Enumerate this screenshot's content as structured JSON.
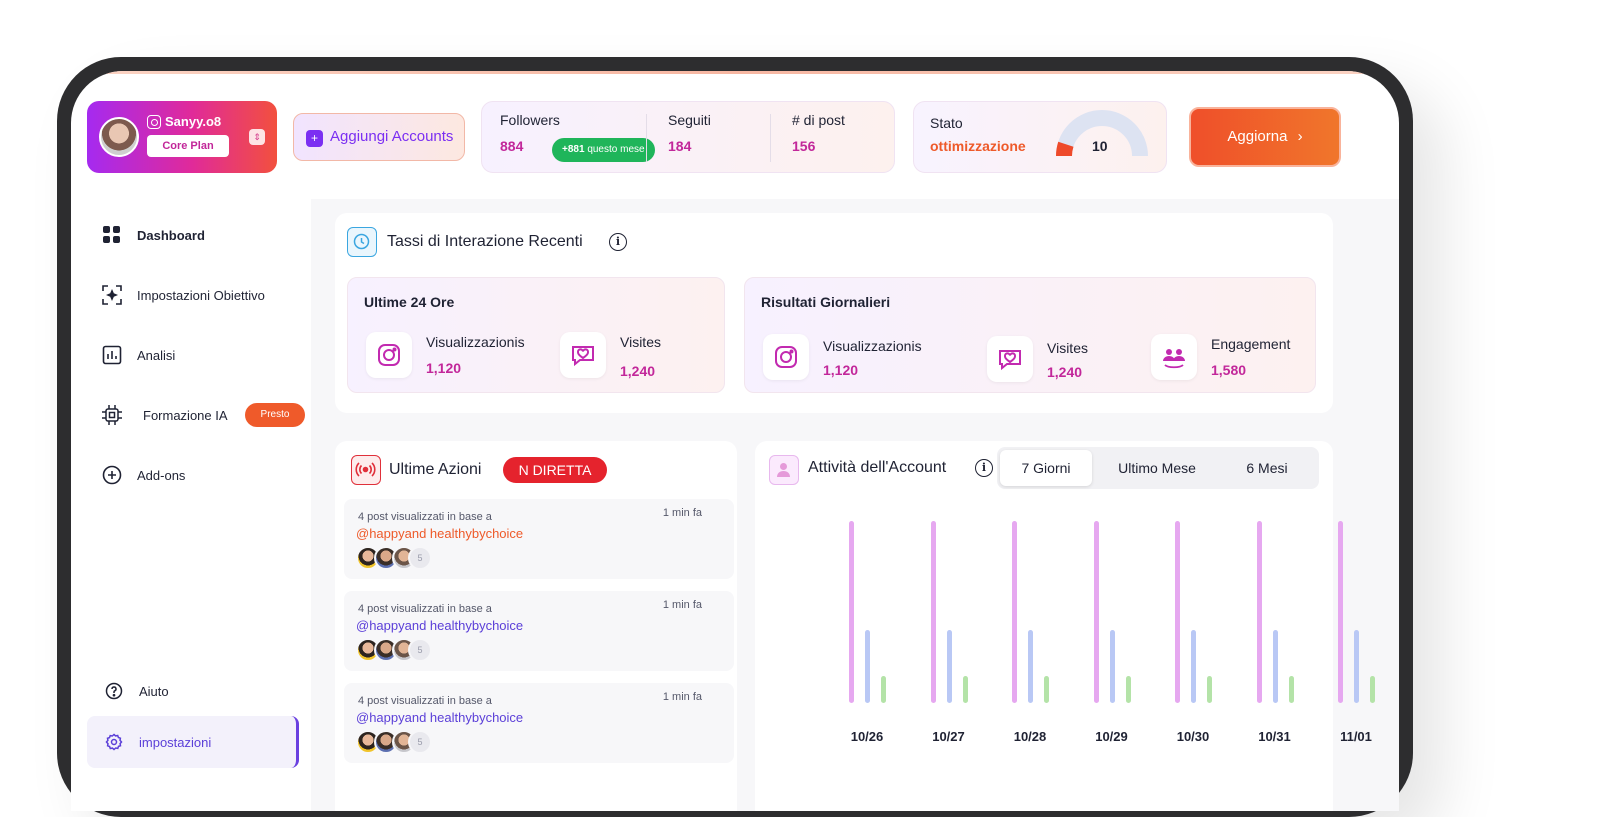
{
  "profile": {
    "username": "Sanyy.o8",
    "plan": "Core Plan"
  },
  "add_accounts": {
    "plus": "+",
    "label": "Aggiungi Accounts"
  },
  "stats": {
    "followers": {
      "label": "Followers",
      "value": "884",
      "badge_value": "+881",
      "badge_suffix": "questo mese"
    },
    "following": {
      "label": "Seguiti",
      "value": "184"
    },
    "posts": {
      "label": "# di post",
      "value": "156"
    }
  },
  "optimization": {
    "label": "Stato",
    "status": "ottimizzazione",
    "score": "10",
    "score_fraction": 0.1
  },
  "update_button": {
    "label": "Aggiorna",
    "chevron": "›"
  },
  "sidebar": {
    "items": [
      {
        "label": "Dashboard",
        "icon": "grid-icon"
      },
      {
        "label": "Impostazioni Obiettivo",
        "icon": "target-icon"
      },
      {
        "label": "Analisi",
        "icon": "chart-icon"
      },
      {
        "label": "Formazione IA",
        "icon": "chip-icon"
      },
      {
        "label": "Add-ons",
        "icon": "plus-circle-icon"
      }
    ],
    "presto_badge": "Presto",
    "help": "Aiuto",
    "settings": "impostazioni"
  },
  "interaction": {
    "title": "Tassi di Interazione Recenti",
    "info": "i",
    "last24": {
      "title": "Ultime 24 Ore",
      "metrics": [
        {
          "label": "Visualizzazionis",
          "value": "1,120",
          "icon": "instagram-icon"
        },
        {
          "label": "Visites",
          "value": "1,240",
          "icon": "heart-chat-icon"
        }
      ]
    },
    "daily": {
      "title": "Risultati Giornalieri",
      "metrics": [
        {
          "label": "Visualizzazionis",
          "value": "1,120",
          "icon": "instagram-icon"
        },
        {
          "label": "Visites",
          "value": "1,240",
          "icon": "heart-chat-icon"
        },
        {
          "label": "Engagement",
          "value": "1,580",
          "icon": "people-icon"
        }
      ]
    }
  },
  "actions": {
    "title": "Ultime Azioni",
    "live_badge": "N DIRETTA",
    "items": [
      {
        "desc": "4 post visualizzati in base a",
        "handle": "@happyand healthybychoice",
        "time": "1 min fa",
        "more": "5",
        "handle_color": "#ee5a2a"
      },
      {
        "desc": "4 post visualizzati in base a",
        "handle": "@happyand healthybychoice",
        "time": "1 min fa",
        "more": "5",
        "handle_color": "#5b3fd8"
      },
      {
        "desc": "4 post visualizzati in base a",
        "handle": "@happyand healthybychoice",
        "time": "1 min fa",
        "more": "5",
        "handle_color": "#5b3fd8"
      }
    ]
  },
  "activity": {
    "title": "Attività dell'Account",
    "info": "i",
    "tabs": [
      "7 Giorni",
      "Ultimo Mese",
      "6 Mesi"
    ],
    "active_tab": "7 Giorni"
  },
  "chart_data": {
    "type": "bar",
    "categories": [
      "10/26",
      "10/27",
      "10/28",
      "10/29",
      "10/30",
      "10/31",
      "11/01"
    ],
    "series": [
      {
        "values": [
          100,
          100,
          100,
          100,
          100,
          100,
          100
        ],
        "color": "#e6a8f0"
      },
      {
        "values": [
          40,
          40,
          40,
          40,
          40,
          40,
          40
        ],
        "color": "#b9c8f5"
      },
      {
        "values": [
          15,
          15,
          15,
          15,
          15,
          15,
          15
        ],
        "color": "#b4e3a8"
      }
    ],
    "ylim": [
      0,
      100
    ],
    "grid": false
  },
  "colors": {
    "accent_orange": "#ef5a2a",
    "accent_purple": "#7b2ff2",
    "live_red": "#e5232d",
    "value_magenta": "#c2279a"
  }
}
